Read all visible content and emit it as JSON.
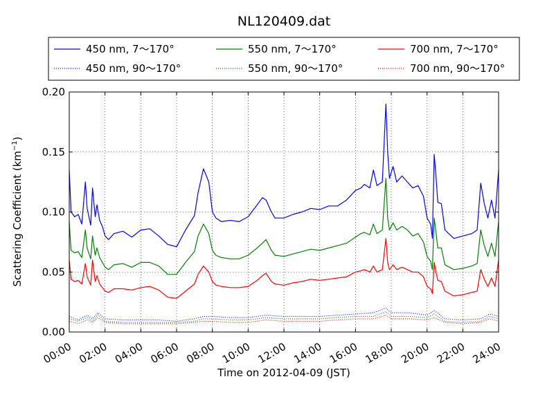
{
  "chart_data": {
    "type": "line",
    "title": "NL120409.dat",
    "xlabel": "Time on 2012-04-09 (JST)",
    "ylabel": "Scattering Coefficient (km",
    "ylabel_sup": "−1",
    "ylabel_close": ")",
    "xlim": [
      0,
      24
    ],
    "ylim": [
      0,
      0.2
    ],
    "x_ticks": [
      0,
      2,
      4,
      6,
      8,
      10,
      12,
      14,
      16,
      18,
      20,
      22,
      24
    ],
    "x_tick_labels": [
      "00:00",
      "02:00",
      "04:00",
      "06:00",
      "08:00",
      "10:00",
      "12:00",
      "14:00",
      "16:00",
      "18:00",
      "20:00",
      "22:00",
      "24:00"
    ],
    "y_ticks": [
      0,
      0.05,
      0.1,
      0.15,
      0.2
    ],
    "y_tick_labels": [
      "0.00",
      "0.05",
      "0.10",
      "0.15",
      "0.20"
    ],
    "grid": true,
    "legend_position": "top",
    "x_unit": "hours",
    "series": [
      {
        "name": "450 nm, 7～170°",
        "color": "#0000ff",
        "style": "solid",
        "x": [
          0,
          0.1,
          0.3,
          0.5,
          0.7,
          0.9,
          1.0,
          1.2,
          1.3,
          1.45,
          1.55,
          1.7,
          1.85,
          2.0,
          2.2,
          2.5,
          3.0,
          3.5,
          4.0,
          4.5,
          5.0,
          5.5,
          6.0,
          6.5,
          7.0,
          7.2,
          7.5,
          7.8,
          8.0,
          8.2,
          8.5,
          9.0,
          9.5,
          10.0,
          10.5,
          10.8,
          11.0,
          11.3,
          11.5,
          12.0,
          12.5,
          13.0,
          13.5,
          14.0,
          14.5,
          15.0,
          15.5,
          16.0,
          16.3,
          16.5,
          16.8,
          17.0,
          17.2,
          17.5,
          17.7,
          17.8,
          17.9,
          18.1,
          18.3,
          18.6,
          18.9,
          19.2,
          19.5,
          19.8,
          20.0,
          20.2,
          20.3,
          20.4,
          20.5,
          20.6,
          20.8,
          21.0,
          21.5,
          22.0,
          22.5,
          22.8,
          23.0,
          23.2,
          23.4,
          23.6,
          23.8,
          24.0
        ],
        "y": [
          0.135,
          0.1,
          0.096,
          0.098,
          0.09,
          0.125,
          0.103,
          0.089,
          0.12,
          0.096,
          0.106,
          0.093,
          0.088,
          0.08,
          0.077,
          0.082,
          0.084,
          0.079,
          0.085,
          0.086,
          0.08,
          0.073,
          0.071,
          0.085,
          0.097,
          0.116,
          0.136,
          0.125,
          0.1,
          0.095,
          0.092,
          0.093,
          0.092,
          0.096,
          0.106,
          0.112,
          0.11,
          0.1,
          0.095,
          0.095,
          0.098,
          0.1,
          0.103,
          0.102,
          0.105,
          0.105,
          0.11,
          0.118,
          0.12,
          0.123,
          0.12,
          0.135,
          0.122,
          0.125,
          0.19,
          0.15,
          0.128,
          0.138,
          0.125,
          0.13,
          0.125,
          0.12,
          0.122,
          0.113,
          0.095,
          0.09,
          0.078,
          0.148,
          0.13,
          0.108,
          0.107,
          0.085,
          0.078,
          0.08,
          0.082,
          0.085,
          0.124,
          0.107,
          0.095,
          0.11,
          0.095,
          0.135
        ]
      },
      {
        "name": "550 nm, 7～170°",
        "color": "#008000",
        "style": "solid",
        "x": [
          0,
          0.1,
          0.3,
          0.5,
          0.7,
          0.9,
          1.0,
          1.2,
          1.3,
          1.45,
          1.55,
          1.7,
          1.85,
          2.0,
          2.2,
          2.5,
          3.0,
          3.5,
          4.0,
          4.5,
          5.0,
          5.5,
          6.0,
          6.5,
          7.0,
          7.2,
          7.5,
          7.8,
          8.0,
          8.2,
          8.5,
          9.0,
          9.5,
          10.0,
          10.5,
          10.8,
          11.0,
          11.3,
          11.5,
          12.0,
          12.5,
          13.0,
          13.5,
          14.0,
          14.5,
          15.0,
          15.5,
          16.0,
          16.3,
          16.5,
          16.8,
          17.0,
          17.2,
          17.5,
          17.7,
          17.8,
          17.9,
          18.1,
          18.3,
          18.6,
          18.9,
          19.2,
          19.5,
          19.8,
          20.0,
          20.2,
          20.3,
          20.4,
          20.5,
          20.6,
          20.8,
          21.0,
          21.5,
          22.0,
          22.5,
          22.8,
          23.0,
          23.2,
          23.4,
          23.6,
          23.8,
          24.0
        ],
        "y": [
          0.092,
          0.068,
          0.066,
          0.067,
          0.062,
          0.085,
          0.07,
          0.061,
          0.08,
          0.064,
          0.07,
          0.062,
          0.058,
          0.054,
          0.052,
          0.056,
          0.057,
          0.054,
          0.058,
          0.058,
          0.055,
          0.048,
          0.048,
          0.058,
          0.067,
          0.08,
          0.09,
          0.082,
          0.068,
          0.064,
          0.062,
          0.061,
          0.061,
          0.064,
          0.07,
          0.074,
          0.077,
          0.068,
          0.064,
          0.063,
          0.065,
          0.067,
          0.069,
          0.068,
          0.07,
          0.072,
          0.074,
          0.079,
          0.082,
          0.083,
          0.081,
          0.09,
          0.082,
          0.085,
          0.128,
          0.095,
          0.085,
          0.091,
          0.085,
          0.088,
          0.085,
          0.08,
          0.082,
          0.075,
          0.063,
          0.059,
          0.052,
          0.095,
          0.083,
          0.07,
          0.07,
          0.056,
          0.052,
          0.053,
          0.055,
          0.057,
          0.085,
          0.072,
          0.063,
          0.074,
          0.063,
          0.092
        ]
      },
      {
        "name": "700 nm, 7～170°",
        "color": "#ff0000",
        "style": "solid",
        "x": [
          0,
          0.1,
          0.3,
          0.5,
          0.7,
          0.9,
          1.0,
          1.2,
          1.3,
          1.45,
          1.55,
          1.7,
          1.85,
          2.0,
          2.2,
          2.5,
          3.0,
          3.5,
          4.0,
          4.5,
          5.0,
          5.5,
          6.0,
          6.5,
          7.0,
          7.2,
          7.5,
          7.8,
          8.0,
          8.2,
          8.5,
          9.0,
          9.5,
          10.0,
          10.5,
          10.8,
          11.0,
          11.3,
          11.5,
          12.0,
          12.5,
          13.0,
          13.5,
          14.0,
          14.5,
          15.0,
          15.5,
          16.0,
          16.3,
          16.5,
          16.8,
          17.0,
          17.2,
          17.5,
          17.7,
          17.8,
          17.9,
          18.1,
          18.3,
          18.6,
          18.9,
          19.2,
          19.5,
          19.8,
          20.0,
          20.2,
          20.3,
          20.4,
          20.5,
          20.6,
          20.8,
          21.0,
          21.5,
          22.0,
          22.5,
          22.8,
          23.0,
          23.2,
          23.4,
          23.6,
          23.8,
          24.0
        ],
        "y": [
          0.06,
          0.044,
          0.042,
          0.043,
          0.04,
          0.057,
          0.046,
          0.039,
          0.06,
          0.042,
          0.047,
          0.04,
          0.037,
          0.034,
          0.033,
          0.036,
          0.036,
          0.035,
          0.037,
          0.038,
          0.035,
          0.029,
          0.028,
          0.034,
          0.04,
          0.048,
          0.055,
          0.05,
          0.042,
          0.039,
          0.038,
          0.037,
          0.037,
          0.038,
          0.043,
          0.047,
          0.049,
          0.042,
          0.04,
          0.039,
          0.041,
          0.042,
          0.044,
          0.043,
          0.044,
          0.045,
          0.046,
          0.05,
          0.051,
          0.052,
          0.05,
          0.055,
          0.05,
          0.052,
          0.078,
          0.058,
          0.052,
          0.056,
          0.052,
          0.054,
          0.052,
          0.05,
          0.05,
          0.046,
          0.038,
          0.036,
          0.032,
          0.058,
          0.05,
          0.043,
          0.042,
          0.034,
          0.03,
          0.031,
          0.033,
          0.034,
          0.052,
          0.044,
          0.038,
          0.045,
          0.038,
          0.06
        ]
      },
      {
        "name": "450 nm, 90～170°",
        "color": "#0000ff",
        "style": "dotted",
        "x": [
          0,
          0.5,
          1.0,
          1.3,
          1.6,
          2.0,
          3.0,
          4.0,
          5.0,
          6.0,
          7.0,
          7.5,
          8.0,
          9.0,
          10.0,
          11.0,
          12.0,
          13.0,
          14.0,
          15.0,
          16.0,
          17.0,
          17.7,
          18.0,
          19.0,
          20.0,
          20.4,
          21.0,
          22.0,
          23.0,
          23.5,
          24.0
        ],
        "y": [
          0.013,
          0.01,
          0.014,
          0.011,
          0.016,
          0.011,
          0.01,
          0.01,
          0.01,
          0.009,
          0.011,
          0.013,
          0.013,
          0.012,
          0.012,
          0.014,
          0.013,
          0.013,
          0.013,
          0.014,
          0.015,
          0.016,
          0.02,
          0.016,
          0.016,
          0.014,
          0.018,
          0.011,
          0.01,
          0.011,
          0.015,
          0.013
        ]
      },
      {
        "name": "550 nm, 90～170°",
        "color": "#008000",
        "style": "dotted",
        "x": [
          0,
          0.5,
          1.0,
          1.3,
          1.6,
          2.0,
          3.0,
          4.0,
          5.0,
          6.0,
          7.0,
          7.5,
          8.0,
          9.0,
          10.0,
          11.0,
          12.0,
          13.0,
          14.0,
          15.0,
          16.0,
          17.0,
          17.7,
          18.0,
          19.0,
          20.0,
          20.4,
          21.0,
          22.0,
          23.0,
          23.5,
          24.0
        ],
        "y": [
          0.011,
          0.009,
          0.012,
          0.009,
          0.014,
          0.009,
          0.008,
          0.008,
          0.008,
          0.008,
          0.009,
          0.011,
          0.011,
          0.01,
          0.01,
          0.012,
          0.011,
          0.011,
          0.011,
          0.012,
          0.013,
          0.013,
          0.017,
          0.013,
          0.013,
          0.012,
          0.015,
          0.009,
          0.008,
          0.009,
          0.013,
          0.011
        ]
      },
      {
        "name": "700 nm, 90～170°",
        "color": "#ff0000",
        "style": "dotted",
        "x": [
          0,
          0.5,
          1.0,
          1.3,
          1.6,
          2.0,
          3.0,
          4.0,
          5.0,
          6.0,
          7.0,
          7.5,
          8.0,
          9.0,
          10.0,
          11.0,
          12.0,
          13.0,
          14.0,
          15.0,
          16.0,
          17.0,
          17.7,
          18.0,
          19.0,
          20.0,
          20.4,
          21.0,
          22.0,
          23.0,
          23.5,
          24.0
        ],
        "y": [
          0.009,
          0.007,
          0.01,
          0.008,
          0.012,
          0.008,
          0.007,
          0.007,
          0.007,
          0.007,
          0.008,
          0.009,
          0.009,
          0.008,
          0.008,
          0.01,
          0.009,
          0.009,
          0.009,
          0.01,
          0.011,
          0.011,
          0.014,
          0.011,
          0.011,
          0.01,
          0.012,
          0.008,
          0.007,
          0.008,
          0.011,
          0.009
        ]
      }
    ],
    "legend": {
      "order": [
        0,
        1,
        2,
        3,
        4,
        5
      ]
    }
  }
}
